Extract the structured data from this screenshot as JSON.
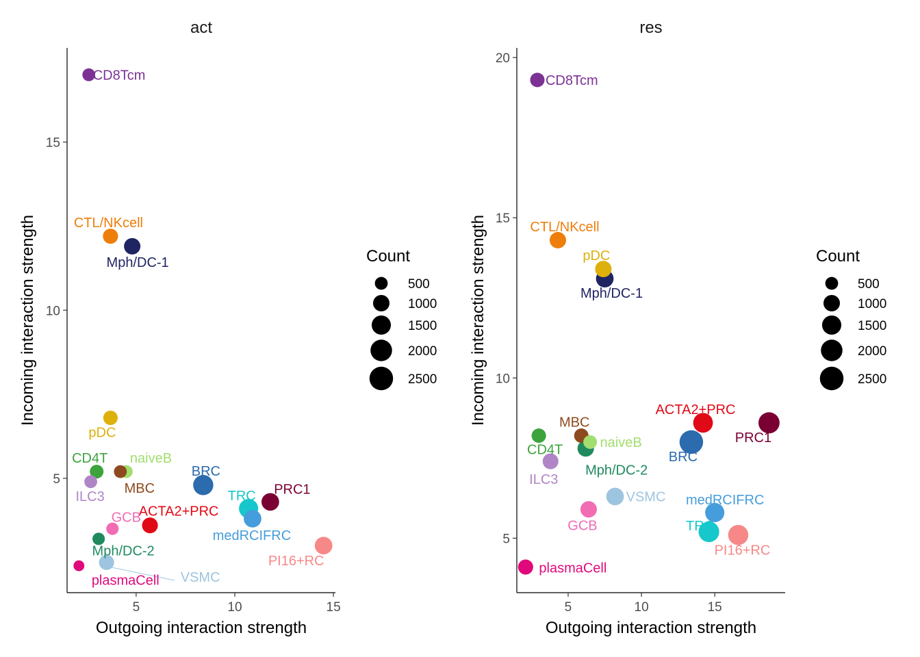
{
  "chart_data": [
    {
      "type": "scatter",
      "title": "act",
      "xlabel": "Outgoing interaction strength",
      "ylabel": "Incoming interaction strength",
      "xlim": [
        1.5,
        15.1
      ],
      "ylim": [
        1.6,
        17.8
      ],
      "xticks": [
        5,
        10,
        15
      ],
      "yticks": [
        5,
        10,
        15
      ],
      "points": [
        {
          "label": "CD8Tcm",
          "x": 2.6,
          "y": 17.0,
          "count": 500,
          "color": "#7B3294"
        },
        {
          "label": "CTL/NKcell",
          "x": 3.7,
          "y": 12.2,
          "count": 800,
          "color": "#EE7E0B"
        },
        {
          "label": "Mph/DC-1",
          "x": 4.8,
          "y": 11.9,
          "count": 1000,
          "color": "#1F2462"
        },
        {
          "label": "pDC",
          "x": 3.7,
          "y": 6.8,
          "count": 700,
          "color": "#DDB00B"
        },
        {
          "label": "CD4T",
          "x": 3.0,
          "y": 5.2,
          "count": 600,
          "color": "#3DA33D"
        },
        {
          "label": "naiveB",
          "x": 4.5,
          "y": 5.2,
          "count": 500,
          "color": "#A2DD6F"
        },
        {
          "label": "MBC",
          "x": 4.2,
          "y": 5.2,
          "count": 500,
          "color": "#8E4A1F"
        },
        {
          "label": "ILC3",
          "x": 2.7,
          "y": 4.9,
          "count": 500,
          "color": "#B085C5"
        },
        {
          "label": "BRC",
          "x": 8.4,
          "y": 4.8,
          "count": 1700,
          "color": "#2C6BAD"
        },
        {
          "label": "TRC",
          "x": 10.7,
          "y": 4.1,
          "count": 1500,
          "color": "#16C7CB"
        },
        {
          "label": "PRC1",
          "x": 11.8,
          "y": 4.3,
          "count": 1200,
          "color": "#7A0033"
        },
        {
          "label": "medRCIFRC",
          "x": 10.9,
          "y": 3.8,
          "count": 1200,
          "color": "#469DDB"
        },
        {
          "label": "ACTA2+PRC",
          "x": 5.7,
          "y": 3.6,
          "count": 900,
          "color": "#E00A16"
        },
        {
          "label": "GCB",
          "x": 3.8,
          "y": 3.5,
          "count": 450,
          "color": "#F26CB3"
        },
        {
          "label": "Mph/DC-2",
          "x": 3.1,
          "y": 3.2,
          "count": 450,
          "color": "#1E8A5E"
        },
        {
          "label": "PI16+RC",
          "x": 14.5,
          "y": 3.0,
          "count": 1200,
          "color": "#F78888"
        },
        {
          "label": "VSMC",
          "x": 3.5,
          "y": 2.5,
          "count": 800,
          "color": "#9EC5DF"
        },
        {
          "label": "plasmaCell",
          "x": 2.1,
          "y": 2.4,
          "count": 300,
          "color": "#E0097C"
        }
      ]
    },
    {
      "type": "scatter",
      "title": "res",
      "xlabel": "Outgoing interaction strength",
      "ylabel": "Incoming interaction strength",
      "xlim": [
        1.5,
        19.8
      ],
      "ylim": [
        3.3,
        20.3
      ],
      "xticks": [
        5,
        10,
        15
      ],
      "yticks": [
        5,
        10,
        15,
        20
      ],
      "points": [
        {
          "label": "CD8Tcm",
          "x": 2.9,
          "y": 19.3,
          "count": 700,
          "color": "#7B3294"
        },
        {
          "label": "CTL/NKcell",
          "x": 4.3,
          "y": 14.3,
          "count": 1000,
          "color": "#EE7E0B"
        },
        {
          "label": "Mph/DC-1",
          "x": 7.5,
          "y": 13.1,
          "count": 1200,
          "color": "#1F2462"
        },
        {
          "label": "pDC",
          "x": 7.4,
          "y": 13.4,
          "count": 1000,
          "color": "#DDB00B"
        },
        {
          "label": "ACTA2+PRC",
          "x": 14.2,
          "y": 8.6,
          "count": 1600,
          "color": "#E00A16"
        },
        {
          "label": "PRC1",
          "x": 18.7,
          "y": 8.6,
          "count": 1900,
          "color": "#7A0033"
        },
        {
          "label": "BRC",
          "x": 13.4,
          "y": 8.0,
          "count": 2500,
          "color": "#2C6BAD"
        },
        {
          "label": "CD4T",
          "x": 3.0,
          "y": 8.2,
          "count": 700,
          "color": "#3DA33D"
        },
        {
          "label": "MBC",
          "x": 5.9,
          "y": 8.2,
          "count": 700,
          "color": "#8E4A1F"
        },
        {
          "label": "naiveB",
          "x": 6.5,
          "y": 8.0,
          "count": 600,
          "color": "#A2DD6F"
        },
        {
          "label": "Mph/DC-2",
          "x": 6.2,
          "y": 7.8,
          "count": 1000,
          "color": "#1E8A5E"
        },
        {
          "label": "ILC3",
          "x": 3.8,
          "y": 7.4,
          "count": 900,
          "color": "#B085C5"
        },
        {
          "label": "VSMC",
          "x": 8.2,
          "y": 6.3,
          "count": 1200,
          "color": "#9EC5DF"
        },
        {
          "label": "GCB",
          "x": 6.4,
          "y": 5.9,
          "count": 1000,
          "color": "#F26CB3"
        },
        {
          "label": "medRCIFRC",
          "x": 15.0,
          "y": 5.8,
          "count": 1500,
          "color": "#469DDB"
        },
        {
          "label": "TRC",
          "x": 14.6,
          "y": 5.2,
          "count": 1800,
          "color": "#16C7CB"
        },
        {
          "label": "PI16+RC",
          "x": 16.6,
          "y": 5.1,
          "count": 1700,
          "color": "#F78888"
        },
        {
          "label": "plasmaCell",
          "x": 2.1,
          "y": 4.1,
          "count": 800,
          "color": "#E0097C"
        }
      ]
    }
  ],
  "legend": {
    "title": "Count",
    "items": [
      {
        "label": "500",
        "value": 500
      },
      {
        "label": "1000",
        "value": 1000
      },
      {
        "label": "1500",
        "value": 1500
      },
      {
        "label": "2000",
        "value": 2000
      },
      {
        "label": "2500",
        "value": 2500
      }
    ]
  }
}
